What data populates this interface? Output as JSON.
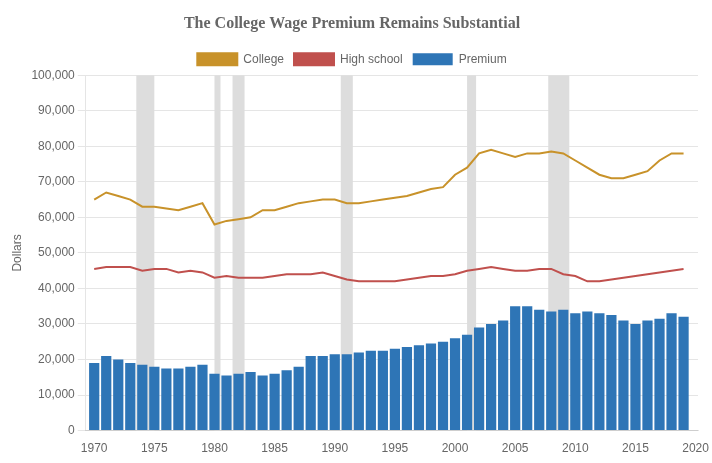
{
  "chart_data": {
    "type": "bar",
    "title": "The College Wage Premium Remains Substantial",
    "y_label": "Dollars",
    "x": [
      1970,
      1971,
      1972,
      1973,
      1974,
      1975,
      1976,
      1977,
      1978,
      1979,
      1980,
      1981,
      1982,
      1983,
      1984,
      1985,
      1986,
      1987,
      1988,
      1989,
      1990,
      1991,
      1992,
      1993,
      1994,
      1995,
      1996,
      1997,
      1998,
      1999,
      2000,
      2001,
      2002,
      2003,
      2004,
      2005,
      2006,
      2007,
      2008,
      2009,
      2010,
      2011,
      2012,
      2013,
      2014,
      2015,
      2016,
      2017,
      2018,
      2019
    ],
    "series": [
      {
        "name": "College",
        "type": "line",
        "color": "#C8922A",
        "values": [
          65000,
          67000,
          66000,
          65000,
          63000,
          63000,
          62500,
          62000,
          63000,
          64000,
          58000,
          59000,
          59500,
          60000,
          62000,
          62000,
          63000,
          64000,
          64500,
          65000,
          65000,
          64000,
          64000,
          64500,
          65000,
          65500,
          66000,
          67000,
          68000,
          68500,
          72000,
          74000,
          78000,
          79000,
          78000,
          77000,
          78000,
          78000,
          78500,
          78000,
          76000,
          74000,
          72000,
          71000,
          71000,
          72000,
          73000,
          76000,
          78000,
          78000
        ]
      },
      {
        "name": "High school",
        "type": "line",
        "color": "#C0504D",
        "values": [
          45500,
          46000,
          46000,
          46000,
          45000,
          45500,
          45500,
          44500,
          45000,
          44500,
          43000,
          43500,
          43000,
          43000,
          43000,
          43500,
          44000,
          44000,
          44000,
          44500,
          43500,
          42500,
          42000,
          42000,
          42000,
          42000,
          42500,
          43000,
          43500,
          43500,
          44000,
          45000,
          45500,
          46000,
          45500,
          45000,
          45000,
          45500,
          45500,
          44000,
          43500,
          42000,
          42000,
          42500,
          43000,
          43500,
          44000,
          44500,
          45000,
          45500
        ]
      },
      {
        "name": "Premium",
        "type": "bar",
        "color": "#2E75B6",
        "values": [
          19000,
          21000,
          20000,
          19000,
          18500,
          18000,
          17500,
          17500,
          18000,
          18500,
          16000,
          15500,
          16000,
          16500,
          15500,
          16000,
          17000,
          18000,
          21000,
          21000,
          21500,
          21500,
          22000,
          22500,
          22500,
          23000,
          23500,
          24000,
          24500,
          25000,
          26000,
          27000,
          29000,
          30000,
          31000,
          35000,
          35000,
          34000,
          33500,
          34000,
          33000,
          33500,
          33000,
          32500,
          31000,
          30000,
          31000,
          31500,
          33000,
          32000
        ]
      }
    ],
    "recession_bands": {
      "color": "#DDDDDD",
      "ranges": [
        [
          1973.5,
          1975.0
        ],
        [
          1980.0,
          1980.5
        ],
        [
          1981.5,
          1982.5
        ],
        [
          1990.5,
          1991.5
        ],
        [
          2001.0,
          2001.75
        ],
        [
          2007.75,
          2009.5
        ]
      ]
    },
    "xlim": [
      1969.3,
      2020.2
    ],
    "xticks": [
      1970,
      1975,
      1980,
      1985,
      1990,
      1995,
      2000,
      2005,
      2010,
      2015,
      2020
    ],
    "ylim": [
      0,
      100000
    ],
    "yticks": [
      0,
      {
        "value": 10000,
        "label": "10,000"
      },
      {
        "value": 20000,
        "label": "20,000"
      },
      {
        "value": 30000,
        "label": "30,000"
      },
      {
        "value": 40000,
        "label": "40,000"
      },
      {
        "value": 50000,
        "label": "50,000"
      },
      {
        "value": 60000,
        "label": "60,000"
      },
      {
        "value": 70000,
        "label": "70,000"
      },
      {
        "value": 80000,
        "label": "80,000"
      },
      {
        "value": 90000,
        "label": "90,000"
      },
      {
        "value": 100000,
        "label": "100,000"
      }
    ],
    "grid": true,
    "legend": "top"
  }
}
